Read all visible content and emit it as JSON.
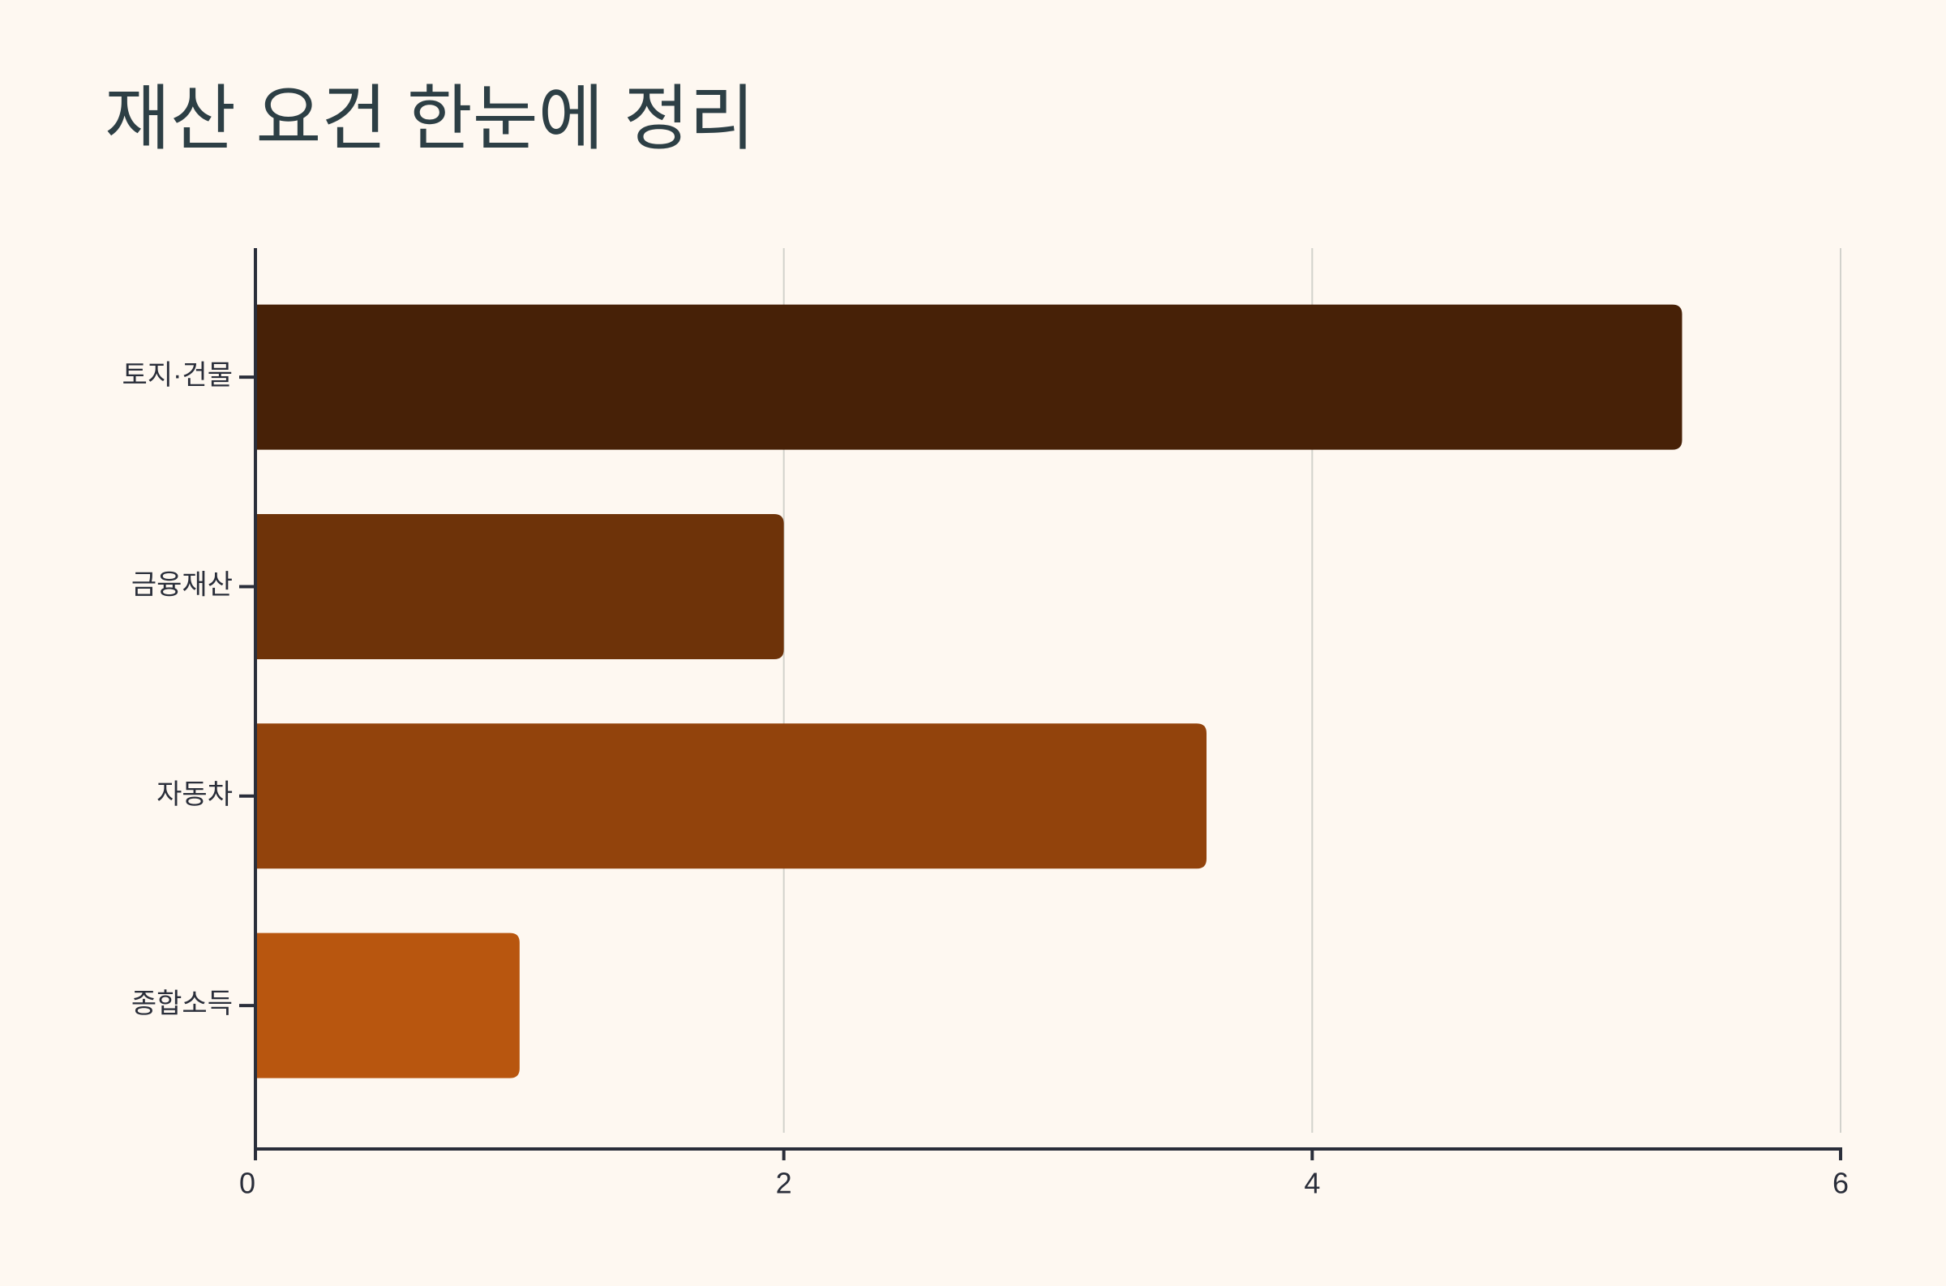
{
  "chart_data": {
    "type": "bar",
    "orientation": "horizontal",
    "title": "재산 요건 한눈에 정리",
    "categories": [
      "토지·건물",
      "금융재산",
      "자동차",
      "종합소득"
    ],
    "values": [
      5.4,
      2.0,
      3.6,
      1.0
    ],
    "colors": [
      "#472107",
      "#6e3309",
      "#92430c",
      "#b8560f"
    ],
    "xlim": [
      0,
      6
    ],
    "xticks": [
      0,
      2,
      4,
      6
    ],
    "grid": true
  }
}
